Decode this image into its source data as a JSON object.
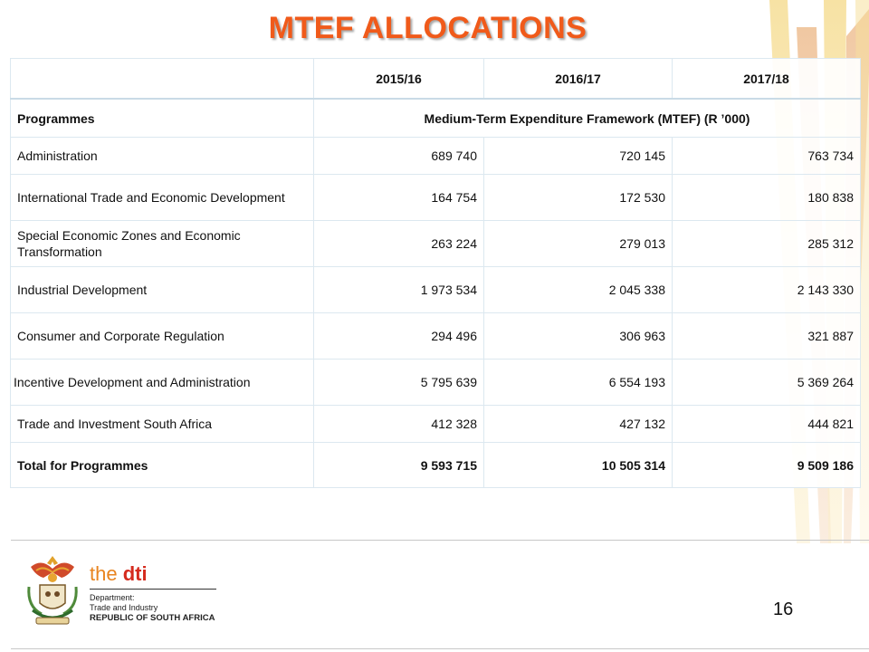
{
  "title": "MTEF ALLOCATIONS",
  "table": {
    "years": [
      "2015/16",
      "2016/17",
      "2017/18"
    ],
    "programmes_label": "Programmes",
    "framework_label": "Medium-Term Expenditure Framework (MTEF) (R ’000)",
    "rows": [
      {
        "name": "Administration",
        "values": [
          "689 740",
          "720 145",
          "763 734"
        ]
      },
      {
        "name": "International Trade and Economic Development",
        "values": [
          "164 754",
          "172 530",
          "180 838"
        ]
      },
      {
        "name": "Special Economic Zones and Economic Transformation",
        "values": [
          "263 224",
          "279 013",
          "285 312"
        ]
      },
      {
        "name": "Industrial Development",
        "values": [
          "1 973 534",
          "2 045 338",
          "2 143 330"
        ]
      },
      {
        "name": "Consumer and Corporate Regulation",
        "values": [
          "294 496",
          "306 963",
          "321 887"
        ]
      },
      {
        "name": "Incentive Development and Administration",
        "values": [
          "5 795 639",
          "6 554 193",
          "5 369 264"
        ]
      },
      {
        "name": "Trade and Investment South Africa",
        "values": [
          "412 328",
          "427 132",
          "444 821"
        ]
      }
    ],
    "total": {
      "name": "Total for Programmes",
      "values": [
        "9 593 715",
        "10 505 314",
        "9 509 186"
      ]
    }
  },
  "footer": {
    "logo_the": "the",
    "logo_dti": "dti",
    "department": "Department:",
    "trade_industry": "Trade and Industry",
    "republic": "REPUBLIC OF SOUTH AFRICA",
    "crest_icon": "coat-of-arms-icon",
    "page_number": "16"
  },
  "colors": {
    "title": "#f05a1a",
    "decor_yellow": "#f3d27a",
    "decor_orange": "#e9a35e",
    "dti_red": "#d52b1e",
    "dti_orange": "#e8841f"
  }
}
